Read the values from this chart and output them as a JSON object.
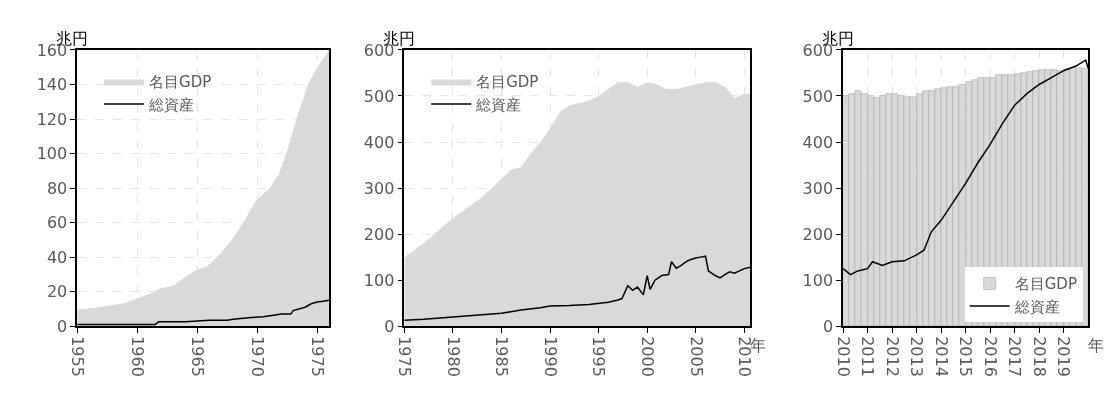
{
  "chart_data": [
    {
      "type": "area",
      "ylabel": "兆円",
      "xlim": [
        1955,
        1976
      ],
      "xticks": [
        1955,
        1960,
        1965,
        1970,
        1975
      ],
      "ylim": [
        0,
        160
      ],
      "yticks": [
        0,
        20,
        40,
        60,
        80,
        100,
        120,
        140,
        160
      ],
      "grid": true,
      "legend": "top left",
      "series": [
        {
          "name": "名目GDP",
          "color": "#d9d9d9",
          "x": [
            1955,
            1956.4,
            1957.2,
            1958.9,
            1960,
            1961.4,
            1961.9,
            1963,
            1964.1,
            1964.9,
            1965.8,
            1966.9,
            1968,
            1969,
            1969.9,
            1971,
            1971.8,
            1972.6,
            1973.4,
            1974.3,
            1975,
            1975.8,
            1976
          ],
          "values": [
            9.6,
            10.5,
            11.4,
            13.3,
            16,
            19.7,
            21.9,
            23.4,
            28.9,
            32.6,
            34.4,
            41.8,
            51,
            62,
            73,
            79.6,
            88,
            104,
            123,
            141,
            150,
            158,
            160
          ]
        },
        {
          "name": "総資産",
          "type": "line",
          "color": "#000000",
          "x": [
            1955,
            1958,
            1961.5,
            1961.8,
            1964,
            1965,
            1966,
            1967.5,
            1968,
            1969.5,
            1970.5,
            1971.5,
            1972,
            1972.8,
            1973,
            1974,
            1974.5,
            1975,
            1975.5,
            1976
          ],
          "values": [
            1,
            1,
            1,
            2.5,
            2.5,
            3,
            3.5,
            3.5,
            4,
            5,
            5.5,
            6.5,
            7,
            7,
            9,
            11,
            13,
            14,
            14.5,
            15
          ]
        }
      ]
    },
    {
      "type": "area",
      "ylabel": "兆円",
      "xlabel": "年",
      "xlim": [
        1975,
        2010.6
      ],
      "xticks": [
        1975,
        1980,
        1985,
        1990,
        1995,
        2000,
        2005,
        2010
      ],
      "ylim": [
        0,
        600
      ],
      "yticks": [
        0,
        100,
        200,
        300,
        400,
        500,
        600
      ],
      "grid": true,
      "legend": "top left",
      "series": [
        {
          "name": "名目GDP",
          "color": "#d9d9d9",
          "x": [
            1975,
            1977,
            1980,
            1982,
            1983,
            1985,
            1986,
            1987,
            1988,
            1989,
            1990,
            1991,
            1992,
            1993,
            1994,
            1995,
            1996,
            1997,
            1998,
            1999,
            2000,
            2001,
            2002,
            2003,
            2004,
            2005,
            2006,
            2007,
            2008,
            2009,
            2010,
            2010.6
          ],
          "values": [
            150,
            180,
            235,
            265,
            280,
            320,
            340,
            345,
            375,
            400,
            430,
            465,
            480,
            485,
            490,
            500,
            515,
            530,
            530,
            520,
            530,
            525,
            515,
            515,
            520,
            525,
            530,
            530,
            520,
            495,
            505,
            505
          ]
        },
        {
          "name": "総資産",
          "type": "line",
          "color": "#000000",
          "x": [
            1975,
            1977,
            1980,
            1983,
            1985,
            1987,
            1989,
            1990,
            1992,
            1994,
            1996,
            1997,
            1997.4,
            1998,
            1998.5,
            1999,
            1999.6,
            2000,
            2000.3,
            2000.8,
            2001.5,
            2002.2,
            2002.5,
            2003,
            2003.5,
            2004,
            2004.5,
            2005,
            2005.5,
            2006,
            2006.3,
            2007,
            2007.5,
            2008,
            2008.5,
            2009,
            2009.5,
            2010,
            2010.6
          ],
          "values": [
            13,
            15,
            20,
            25,
            28,
            35,
            40,
            44,
            45,
            47,
            52,
            57,
            60,
            88,
            78,
            85,
            68,
            110,
            80,
            100,
            110,
            112,
            140,
            126,
            132,
            140,
            145,
            148,
            150,
            152,
            120,
            110,
            105,
            112,
            118,
            115,
            120,
            125,
            128
          ]
        }
      ]
    },
    {
      "type": "bar",
      "ylabel": "兆円",
      "xlabel": "年",
      "xlim": [
        2010,
        2020
      ],
      "xticks": [
        {
          "value": 2010,
          "label": "2010"
        },
        {
          "value": 2011,
          "label": "2011"
        },
        {
          "value": 2012,
          "label": "2012"
        },
        {
          "value": 2013,
          "label": "2013"
        },
        {
          "value": 2014,
          "label": "2014"
        },
        {
          "value": 2015,
          "label": "2015"
        },
        {
          "value": 2016,
          "label": "2016"
        },
        {
          "value": 2017,
          "label": "2017"
        },
        {
          "value": 2018,
          "label": "2018"
        },
        {
          "value": 2019,
          "label": "2019"
        }
      ],
      "ylim": [
        0,
        600
      ],
      "yticks": [
        0,
        100,
        200,
        300,
        400,
        500,
        600
      ],
      "grid": true,
      "legend": "bottom right",
      "series": [
        {
          "name": "名目GDP",
          "color": "#d9d9d9",
          "x": [
            2010.125,
            2010.375,
            2010.625,
            2010.875,
            2011.125,
            2011.375,
            2011.625,
            2011.875,
            2012.125,
            2012.375,
            2012.625,
            2012.875,
            2013.125,
            2013.375,
            2013.625,
            2013.875,
            2014.125,
            2014.375,
            2014.625,
            2014.875,
            2015.125,
            2015.375,
            2015.625,
            2015.875,
            2016.125,
            2016.375,
            2016.625,
            2016.875,
            2017.125,
            2017.375,
            2017.625,
            2017.875,
            2018.125,
            2018.375,
            2018.625,
            2018.875,
            2019.125,
            2019.375,
            2019.625,
            2019.875
          ],
          "values": [
            500,
            505,
            510,
            505,
            500,
            495,
            500,
            505,
            505,
            500,
            497,
            497,
            505,
            510,
            512,
            515,
            518,
            520,
            520,
            525,
            530,
            535,
            540,
            540,
            540,
            545,
            545,
            545,
            548,
            550,
            552,
            555,
            557,
            557,
            557,
            555,
            558,
            560,
            560,
            558
          ]
        },
        {
          "name": "総資産",
          "type": "line",
          "color": "#000000",
          "x": [
            2010,
            2010.3,
            2010.6,
            2011,
            2011.2,
            2011.6,
            2012,
            2012.5,
            2013,
            2013.3,
            2013.6,
            2014,
            2014.5,
            2015,
            2015.5,
            2016,
            2016.5,
            2017,
            2017.5,
            2018,
            2018.5,
            2019,
            2019.5,
            2019.9,
            2020
          ],
          "values": [
            125,
            112,
            120,
            125,
            140,
            132,
            140,
            142,
            155,
            165,
            205,
            230,
            270,
            310,
            355,
            395,
            440,
            480,
            505,
            525,
            540,
            555,
            565,
            578,
            560
          ]
        }
      ]
    }
  ]
}
